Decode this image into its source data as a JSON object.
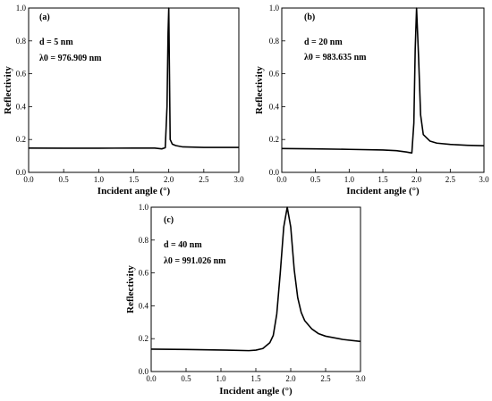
{
  "chart_data": [
    {
      "type": "line",
      "panel_label": "(a)",
      "xlabel": "Incident angle (°)",
      "ylabel": "Reflectivity",
      "xlim": [
        0,
        3
      ],
      "ylim": [
        0,
        1.0
      ],
      "xticks": [
        "0.0",
        "0.5",
        "1.0",
        "1.5",
        "2.0",
        "2.5",
        "3.0"
      ],
      "yticks": [
        "0.0",
        "0.2",
        "0.4",
        "0.6",
        "0.8",
        "1.0"
      ],
      "annotation_d": "d = 5 nm",
      "annotation_lambda": "λ0 = 976.909 nm",
      "series": [
        {
          "x": [
            0.0,
            0.5,
            1.0,
            1.5,
            1.8,
            1.9,
            1.95,
            1.975,
            1.99,
            2.0,
            2.01,
            2.02,
            2.05,
            2.1,
            2.2,
            2.5,
            3.0
          ],
          "y": [
            0.148,
            0.147,
            0.147,
            0.148,
            0.148,
            0.143,
            0.15,
            0.4,
            0.85,
            1.0,
            0.6,
            0.2,
            0.172,
            0.163,
            0.155,
            0.152,
            0.152
          ]
        }
      ]
    },
    {
      "type": "line",
      "panel_label": "(b)",
      "xlabel": "Incident angle (°)",
      "ylabel": "Reflectivity",
      "xlim": [
        0,
        3
      ],
      "ylim": [
        0,
        1.0
      ],
      "xticks": [
        "0.0",
        "0.5",
        "1.0",
        "1.5",
        "2.0",
        "2.5",
        "3.0"
      ],
      "yticks": [
        "0.0",
        "0.2",
        "0.4",
        "0.6",
        "0.8",
        "1.0"
      ],
      "annotation_d": "d = 20 nm",
      "annotation_lambda": "λ0 = 983.635 nm",
      "series": [
        {
          "x": [
            0.0,
            0.5,
            1.0,
            1.5,
            1.7,
            1.85,
            1.93,
            1.96,
            1.98,
            2.0,
            2.03,
            2.06,
            2.1,
            2.2,
            2.3,
            2.5,
            2.75,
            3.0
          ],
          "y": [
            0.145,
            0.143,
            0.14,
            0.136,
            0.132,
            0.124,
            0.118,
            0.3,
            0.75,
            1.0,
            0.7,
            0.35,
            0.23,
            0.19,
            0.178,
            0.17,
            0.165,
            0.162
          ]
        }
      ]
    },
    {
      "type": "line",
      "panel_label": "(c)",
      "xlabel": "Incident angle (°)",
      "ylabel": "Reflectivity",
      "xlim": [
        0,
        3
      ],
      "ylim": [
        0,
        1.0
      ],
      "xticks": [
        "0.0",
        "0.5",
        "1.0",
        "1.5",
        "2.0",
        "2.5",
        "3.0"
      ],
      "yticks": [
        "0.0",
        "0.2",
        "0.4",
        "0.6",
        "0.8",
        "1.0"
      ],
      "annotation_d": "d = 40 nm",
      "annotation_lambda": "λ0 = 991.026 nm",
      "series": [
        {
          "x": [
            0.0,
            0.5,
            1.0,
            1.4,
            1.5,
            1.6,
            1.7,
            1.75,
            1.8,
            1.85,
            1.9,
            1.95,
            2.0,
            2.05,
            2.1,
            2.15,
            2.2,
            2.3,
            2.4,
            2.5,
            2.75,
            3.0
          ],
          "y": [
            0.136,
            0.134,
            0.131,
            0.127,
            0.13,
            0.14,
            0.175,
            0.22,
            0.35,
            0.6,
            0.88,
            1.0,
            0.88,
            0.62,
            0.45,
            0.36,
            0.31,
            0.26,
            0.23,
            0.215,
            0.195,
            0.183
          ]
        }
      ]
    }
  ]
}
